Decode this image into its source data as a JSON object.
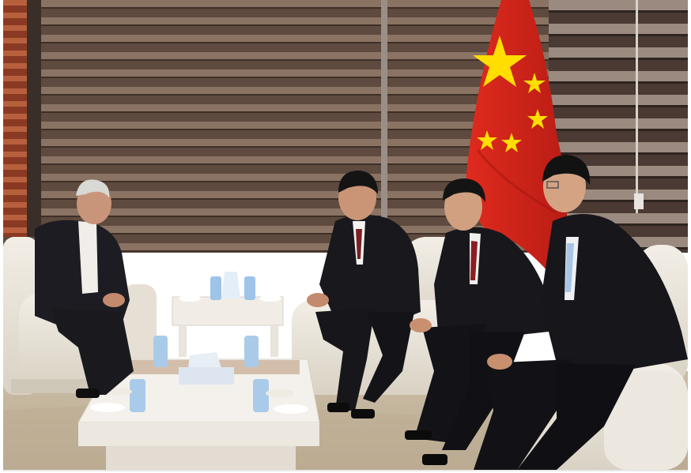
{
  "photo": {
    "scene": "meeting-room",
    "colors": {
      "blind_dark": "#5a463b",
      "blind_light": "#8b7463",
      "flag_red": "#d8261c",
      "flag_star": "#ffde00",
      "suit": "#1c1c20",
      "sofa": "#ece7dc",
      "table": "#f3f0ea",
      "carpet": "#c9bba4"
    }
  }
}
